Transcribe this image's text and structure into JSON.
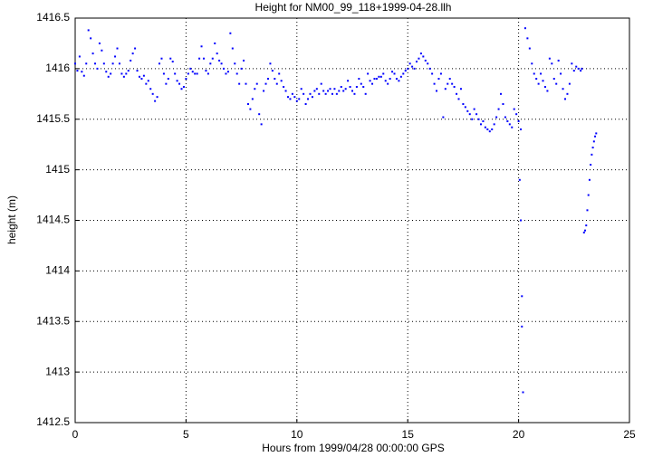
{
  "chart_data": {
    "type": "scatter",
    "title": "Height for NM00_99_118+1999-04-28.llh",
    "x_label": "Hours from 1999/04/28 00:00:00 GPS",
    "y_label": "height (m)",
    "xlim": [
      0,
      25
    ],
    "xticks": [
      0,
      5,
      10,
      15,
      20,
      25
    ],
    "ylim": [
      1412.5,
      1416.5
    ],
    "yticks": [
      1412.5,
      1413,
      1413.5,
      1414,
      1414.5,
      1415,
      1415.5,
      1416,
      1416.5
    ],
    "grid": true,
    "color": "#0000ff",
    "x": [
      0.0,
      0.1,
      0.2,
      0.3,
      0.4,
      0.5,
      0.6,
      0.7,
      0.8,
      0.9,
      1.0,
      1.1,
      1.2,
      1.3,
      1.4,
      1.5,
      1.6,
      1.7,
      1.8,
      1.9,
      2.0,
      2.1,
      2.2,
      2.3,
      2.4,
      2.5,
      2.6,
      2.7,
      2.8,
      2.9,
      3.0,
      3.1,
      3.2,
      3.3,
      3.4,
      3.5,
      3.6,
      3.7,
      3.8,
      3.9,
      4.0,
      4.1,
      4.2,
      4.3,
      4.4,
      4.5,
      4.6,
      4.7,
      4.8,
      4.9,
      5.0,
      5.1,
      5.2,
      5.3,
      5.4,
      5.5,
      5.6,
      5.7,
      5.8,
      5.9,
      6.0,
      6.1,
      6.2,
      6.3,
      6.4,
      6.5,
      6.6,
      6.7,
      6.8,
      6.9,
      7.0,
      7.1,
      7.2,
      7.3,
      7.4,
      7.5,
      7.6,
      7.7,
      7.8,
      7.9,
      8.0,
      8.1,
      8.2,
      8.3,
      8.4,
      8.5,
      8.6,
      8.7,
      8.8,
      8.9,
      9.0,
      9.1,
      9.2,
      9.3,
      9.4,
      9.5,
      9.6,
      9.7,
      9.8,
      9.9,
      10.0,
      10.1,
      10.2,
      10.3,
      10.4,
      10.5,
      10.6,
      10.7,
      10.8,
      10.9,
      11.0,
      11.1,
      11.2,
      11.3,
      11.4,
      11.5,
      11.6,
      11.7,
      11.8,
      11.9,
      12.0,
      12.1,
      12.2,
      12.3,
      12.4,
      12.5,
      12.6,
      12.7,
      12.8,
      12.9,
      13.0,
      13.1,
      13.2,
      13.3,
      13.4,
      13.5,
      13.6,
      13.7,
      13.8,
      13.9,
      14.0,
      14.1,
      14.2,
      14.3,
      14.4,
      14.5,
      14.6,
      14.7,
      14.8,
      14.9,
      15.0,
      15.1,
      15.2,
      15.3,
      15.4,
      15.5,
      15.6,
      15.7,
      15.8,
      15.9,
      16.0,
      16.1,
      16.2,
      16.3,
      16.4,
      16.5,
      16.6,
      16.7,
      16.8,
      16.9,
      17.0,
      17.1,
      17.2,
      17.3,
      17.4,
      17.5,
      17.6,
      17.7,
      17.8,
      17.9,
      18.0,
      18.1,
      18.2,
      18.3,
      18.4,
      18.5,
      18.6,
      18.7,
      18.8,
      18.9,
      19.0,
      19.1,
      19.2,
      19.3,
      19.4,
      19.5,
      19.6,
      19.7,
      19.8,
      19.9,
      20.0,
      20.1,
      20.05,
      20.1,
      20.15,
      20.15,
      20.2,
      20.3,
      20.4,
      20.5,
      20.6,
      20.7,
      20.8,
      20.9,
      21.0,
      21.1,
      21.2,
      21.3,
      21.4,
      21.5,
      21.6,
      21.7,
      21.8,
      21.9,
      22.0,
      22.1,
      22.2,
      22.3,
      22.4,
      22.5,
      22.6,
      22.7,
      22.8,
      22.85,
      22.95,
      23.0,
      23.05,
      23.1,
      23.15,
      23.2,
      23.25,
      23.3,
      23.35,
      23.4,
      23.45,
      23.5
    ],
    "values": [
      1416.05,
      1415.98,
      1416.12,
      1415.97,
      1415.93,
      1416.05,
      1416.38,
      1416.3,
      1416.15,
      1416.05,
      1416.0,
      1416.25,
      1416.18,
      1416.05,
      1415.97,
      1415.92,
      1415.95,
      1416.05,
      1416.12,
      1416.2,
      1416.05,
      1415.95,
      1415.92,
      1415.95,
      1415.98,
      1416.08,
      1416.15,
      1416.2,
      1415.98,
      1415.92,
      1415.9,
      1415.93,
      1415.85,
      1415.88,
      1415.8,
      1415.75,
      1415.68,
      1415.72,
      1416.05,
      1416.1,
      1415.95,
      1415.85,
      1415.9,
      1416.1,
      1416.07,
      1415.95,
      1415.88,
      1415.85,
      1415.8,
      1415.82,
      1415.9,
      1415.95,
      1416.0,
      1415.97,
      1415.95,
      1415.95,
      1416.1,
      1416.22,
      1416.1,
      1415.98,
      1415.95,
      1416.05,
      1416.1,
      1416.25,
      1416.15,
      1416.08,
      1416.05,
      1416.0,
      1415.95,
      1415.97,
      1416.35,
      1416.2,
      1416.05,
      1415.95,
      1415.85,
      1416.0,
      1416.08,
      1415.85,
      1415.65,
      1415.6,
      1415.7,
      1415.8,
      1415.85,
      1415.55,
      1415.45,
      1415.78,
      1415.85,
      1415.9,
      1416.05,
      1415.98,
      1415.9,
      1415.85,
      1415.95,
      1415.88,
      1415.82,
      1415.78,
      1415.72,
      1415.7,
      1415.75,
      1415.72,
      1415.68,
      1415.7,
      1415.8,
      1415.75,
      1415.65,
      1415.7,
      1415.75,
      1415.72,
      1415.78,
      1415.8,
      1415.75,
      1415.85,
      1415.78,
      1415.75,
      1415.78,
      1415.8,
      1415.75,
      1415.8,
      1415.75,
      1415.78,
      1415.82,
      1415.78,
      1415.8,
      1415.88,
      1415.82,
      1415.78,
      1415.75,
      1415.82,
      1415.9,
      1415.85,
      1415.82,
      1415.75,
      1415.95,
      1415.88,
      1415.85,
      1415.9,
      1415.9,
      1415.92,
      1415.92,
      1415.95,
      1415.88,
      1415.85,
      1415.9,
      1415.97,
      1415.95,
      1415.9,
      1415.88,
      1415.92,
      1415.95,
      1415.98,
      1416.0,
      1416.05,
      1416.02,
      1416.0,
      1416.07,
      1416.1,
      1416.15,
      1416.12,
      1416.08,
      1416.05,
      1416.0,
      1415.95,
      1415.85,
      1415.78,
      1415.9,
      1415.95,
      1415.52,
      1415.8,
      1415.85,
      1415.9,
      1415.85,
      1415.82,
      1415.75,
      1415.7,
      1415.8,
      1415.65,
      1415.62,
      1415.58,
      1415.55,
      1415.5,
      1415.6,
      1415.55,
      1415.5,
      1415.45,
      1415.48,
      1415.42,
      1415.4,
      1415.38,
      1415.4,
      1415.45,
      1415.52,
      1415.6,
      1415.75,
      1415.65,
      1415.52,
      1415.48,
      1415.45,
      1415.42,
      1415.6,
      1415.55,
      1415.48,
      1415.4,
      1414.9,
      1414.5,
      1413.75,
      1413.45,
      1412.8,
      1416.4,
      1416.3,
      1416.2,
      1416.05,
      1415.95,
      1415.9,
      1415.85,
      1415.95,
      1415.88,
      1415.82,
      1415.78,
      1416.1,
      1416.05,
      1415.9,
      1415.85,
      1416.08,
      1415.95,
      1415.8,
      1415.7,
      1415.75,
      1415.85,
      1416.05,
      1415.98,
      1416.02,
      1416.0,
      1415.98,
      1416.0,
      1414.38,
      1414.4,
      1414.45,
      1414.6,
      1414.75,
      1414.9,
      1415.05,
      1415.15,
      1415.22,
      1415.28,
      1415.33,
      1415.36
    ]
  }
}
